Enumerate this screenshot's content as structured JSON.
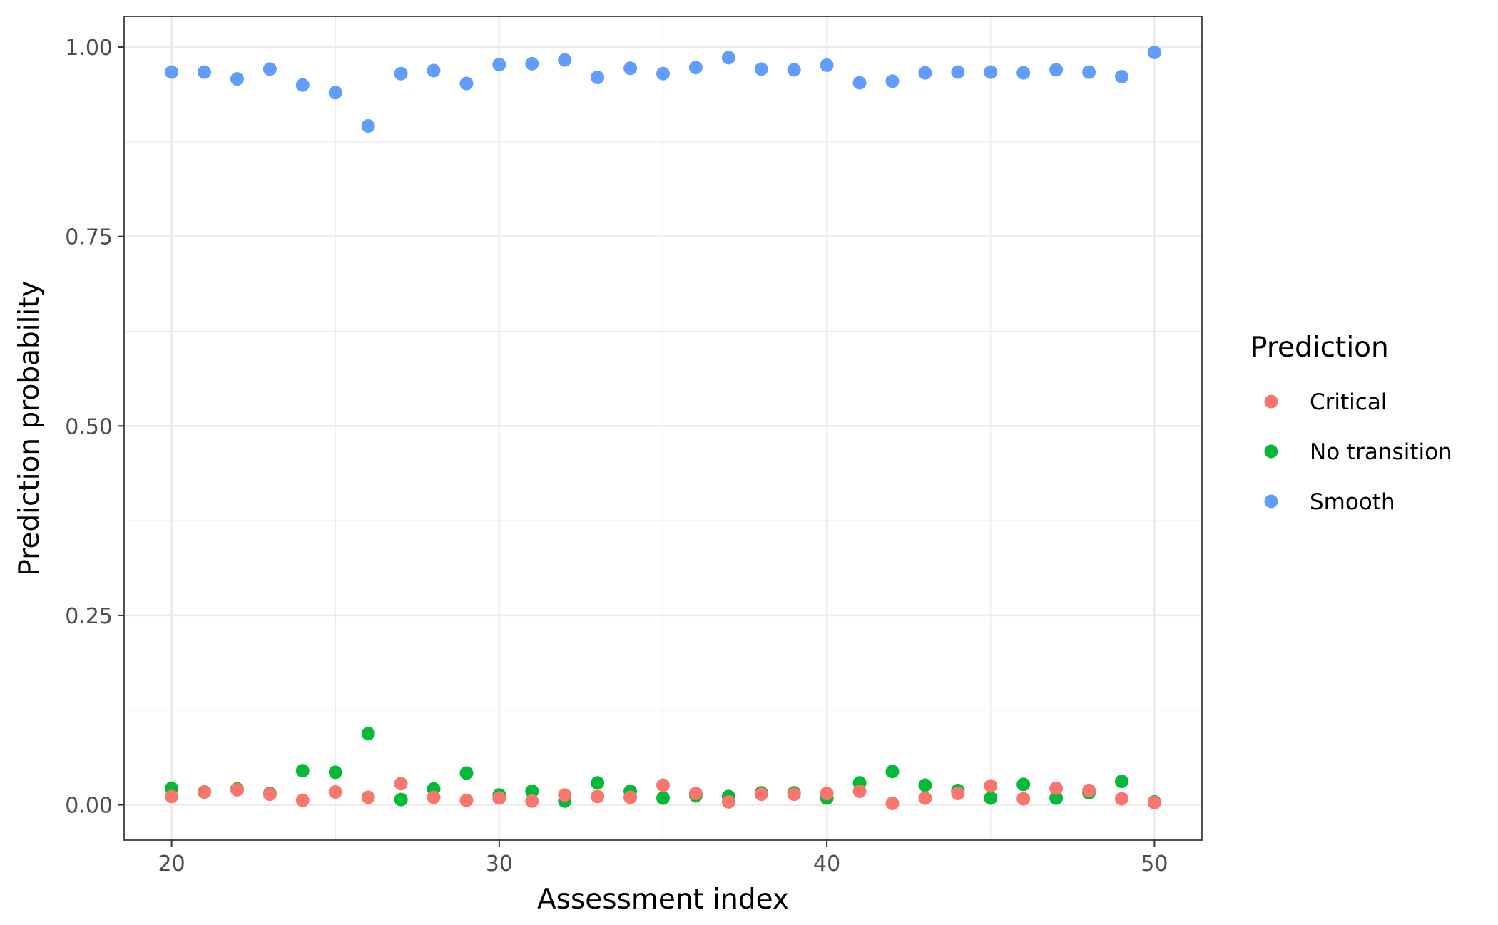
{
  "chart_data": {
    "type": "scatter",
    "title": "",
    "xlabel": "Assessment index",
    "ylabel": "Prediction probability",
    "xlim": [
      18.55,
      51.45
    ],
    "ylim": [
      -0.0465,
      1.0405
    ],
    "x_ticks": [
      20,
      30,
      40,
      50
    ],
    "x_tick_labels": [
      "20",
      "30",
      "40",
      "50"
    ],
    "y_ticks": [
      0,
      0.25,
      0.5,
      0.75,
      1
    ],
    "y_tick_labels": [
      "0.00",
      "0.25",
      "0.50",
      "0.75",
      "1.00"
    ],
    "grid": true,
    "legend": {
      "title": "Prediction",
      "position": "right"
    },
    "x": [
      20,
      21,
      22,
      23,
      24,
      25,
      26,
      27,
      28,
      29,
      30,
      31,
      32,
      33,
      34,
      35,
      36,
      37,
      38,
      39,
      40,
      41,
      42,
      43,
      44,
      45,
      46,
      47,
      48,
      49,
      50
    ],
    "series": [
      {
        "name": "No transition",
        "color": "#00BA38",
        "values": [
          0.022,
          0.017,
          0.021,
          0.015,
          0.045,
          0.043,
          0.094,
          0.007,
          0.021,
          0.042,
          0.013,
          0.018,
          0.005,
          0.029,
          0.018,
          0.009,
          0.012,
          0.011,
          0.016,
          0.016,
          0.009,
          0.029,
          0.044,
          0.026,
          0.019,
          0.009,
          0.027,
          0.009,
          0.016,
          0.031,
          0.004
        ]
      },
      {
        "name": "Critical",
        "color": "#F8766D",
        "values": [
          0.011,
          0.017,
          0.02,
          0.014,
          0.006,
          0.017,
          0.01,
          0.028,
          0.01,
          0.006,
          0.009,
          0.005,
          0.013,
          0.011,
          0.01,
          0.026,
          0.015,
          0.004,
          0.014,
          0.014,
          0.015,
          0.018,
          0.002,
          0.009,
          0.015,
          0.025,
          0.008,
          0.022,
          0.019,
          0.008,
          0.003
        ]
      },
      {
        "name": "Smooth",
        "color": "#619CFF",
        "values": [
          0.967,
          0.967,
          0.958,
          0.971,
          0.95,
          0.94,
          0.896,
          0.965,
          0.969,
          0.952,
          0.977,
          0.978,
          0.983,
          0.96,
          0.972,
          0.965,
          0.973,
          0.986,
          0.971,
          0.97,
          0.976,
          0.953,
          0.955,
          0.966,
          0.967,
          0.967,
          0.966,
          0.97,
          0.967,
          0.961,
          0.993
        ]
      }
    ],
    "legend_order": [
      "Critical",
      "No transition",
      "Smooth"
    ]
  }
}
